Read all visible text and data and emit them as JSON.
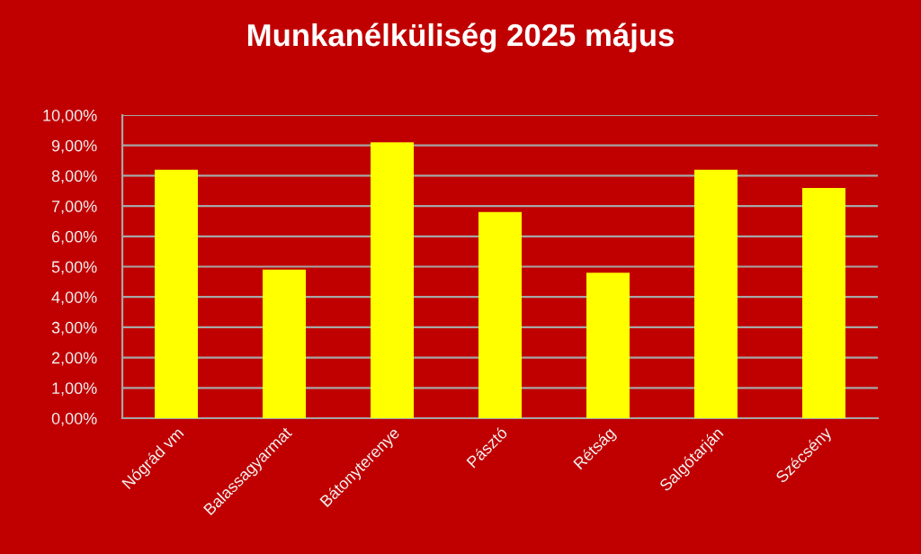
{
  "chart_data": {
    "type": "bar",
    "title": "Munkanélküliség 2025 május",
    "categories": [
      "Nógrád vm",
      "Balassagyarmat",
      "Bátonyterenye",
      "Pásztó",
      "Rétság",
      "Salgótarján",
      "Szécsény"
    ],
    "values": [
      8.2,
      4.9,
      9.1,
      6.8,
      4.8,
      8.2,
      7.6
    ],
    "color": "#ffff00",
    "ylim": [
      0,
      10
    ],
    "yticks": [
      {
        "value": 0,
        "label": "0,00%"
      },
      {
        "value": 1,
        "label": "1,00%"
      },
      {
        "value": 2,
        "label": "2,00%"
      },
      {
        "value": 3,
        "label": "3,00%"
      },
      {
        "value": 4,
        "label": "4,00%"
      },
      {
        "value": 5,
        "label": "5,00%"
      },
      {
        "value": 6,
        "label": "6,00%"
      },
      {
        "value": 7,
        "label": "7,00%"
      },
      {
        "value": 8,
        "label": "8,00%"
      },
      {
        "value": 9,
        "label": "9,00%"
      },
      {
        "value": 10,
        "label": "10,00%"
      }
    ],
    "grid": "y"
  }
}
